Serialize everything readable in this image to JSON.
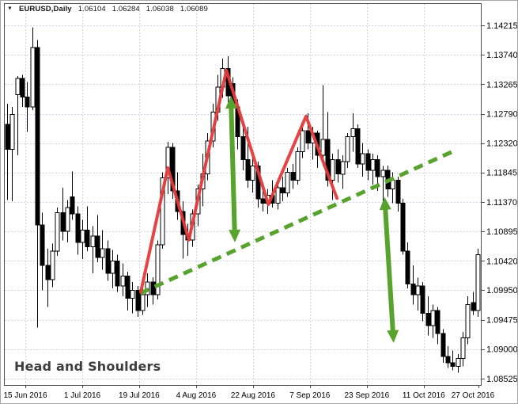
{
  "header": {
    "dropdown_icon": "▼",
    "symbol": "EURUSD,Daily",
    "open": "1.06104",
    "high": "1.06284",
    "low": "1.06038",
    "close": "1.06089"
  },
  "chart_data": {
    "type": "candlestick",
    "symbol": "EURUSD",
    "timeframe": "Daily",
    "annotations": [
      {
        "text": "Head and Shoulders",
        "position": "bottom-left"
      }
    ],
    "grid": {
      "show": true,
      "style": "dashed"
    },
    "colors": {
      "background": "#ffffff",
      "frame": "#4d4d4d",
      "grid": "#d2d2ef",
      "bull_fill": "#ffffff",
      "bear_fill": "#000000",
      "outline": "#000000",
      "pattern_line": "#e43b3b",
      "neckline": "#58a32e",
      "arrow": "#58a32e"
    },
    "y_axis": {
      "position": "right",
      "min": 1.08525,
      "max": 1.14215,
      "labels": [
        "1.14215",
        "1.13740",
        "1.13265",
        "1.12790",
        "1.12320",
        "1.11845",
        "1.11370",
        "1.10895",
        "1.10420",
        "1.09950",
        "1.09475",
        "1.09000",
        "1.08525"
      ]
    },
    "x_axis": {
      "position": "bottom",
      "ticks": [
        {
          "label": "15 Jun 2016",
          "i": 3.63
        },
        {
          "label": "1 Jul 2016",
          "i": 15.0
        },
        {
          "label": "19 Jul 2016",
          "i": 26.37
        },
        {
          "label": "4 Aug 2016",
          "i": 37.74
        },
        {
          "label": "22 Aug 2016",
          "i": 49.11
        },
        {
          "label": "7 Sep 2016",
          "i": 60.48
        },
        {
          "label": "23 Sep 2016",
          "i": 71.85
        },
        {
          "label": "11 Oct 2016",
          "i": 83.22
        },
        {
          "label": "27 Oct 2016",
          "i": 94.2
        }
      ]
    },
    "candles": [
      [
        1.1262,
        1.1295,
        1.114,
        1.1222
      ],
      [
        1.1222,
        1.129,
        1.1138,
        1.1278
      ],
      [
        1.131,
        1.134,
        1.1212,
        1.1336
      ],
      [
        1.1336,
        1.1342,
        1.129,
        1.1306
      ],
      [
        1.1306,
        1.133,
        1.125,
        1.129
      ],
      [
        1.129,
        1.1418,
        1.1285,
        1.1386
      ],
      [
        1.1386,
        1.1398,
        1.0935,
        1.11
      ],
      [
        1.11,
        1.112,
        1.0995,
        1.1035
      ],
      [
        1.1035,
        1.1062,
        1.0968,
        1.1012
      ],
      [
        1.1012,
        1.107,
        1.1,
        1.1058
      ],
      [
        1.1058,
        1.1128,
        1.105,
        1.112
      ],
      [
        1.112,
        1.116,
        1.1075,
        1.109
      ],
      [
        1.109,
        1.114,
        1.1072,
        1.1128
      ],
      [
        1.1145,
        1.1186,
        1.1108,
        1.1118
      ],
      [
        1.1118,
        1.113,
        1.1052,
        1.1072
      ],
      [
        1.1072,
        1.1108,
        1.1045,
        1.1092
      ],
      [
        1.1092,
        1.113,
        1.1058,
        1.1065
      ],
      [
        1.1065,
        1.1098,
        1.1022,
        1.1082
      ],
      [
        1.1082,
        1.1116,
        1.104,
        1.1048
      ],
      [
        1.1048,
        1.1092,
        1.1028,
        1.1062
      ],
      [
        1.1062,
        1.1075,
        1.101,
        1.1022
      ],
      [
        1.1022,
        1.106,
        1.0998,
        1.1042
      ],
      [
        1.1042,
        1.1052,
        1.0992,
        1.1002
      ],
      [
        1.1002,
        1.1038,
        1.0985,
        1.1018
      ],
      [
        1.1018,
        1.1025,
        1.0962,
        1.0982
      ],
      [
        1.0982,
        1.1008,
        1.0958,
        1.0995
      ],
      [
        1.0995,
        1.1002,
        1.0952,
        1.0962
      ],
      [
        1.0962,
        1.0998,
        1.0955,
        1.0988
      ],
      [
        1.0988,
        1.1022,
        1.0968,
        1.1008
      ],
      [
        1.1008,
        1.1016,
        1.0972,
        1.0988
      ],
      [
        1.0988,
        1.1075,
        1.098,
        1.1068
      ],
      [
        1.1068,
        1.1185,
        1.1062,
        1.1176
      ],
      [
        1.1176,
        1.1234,
        1.115,
        1.1225
      ],
      [
        1.1225,
        1.1232,
        1.1142,
        1.1155
      ],
      [
        1.1155,
        1.1185,
        1.1108,
        1.1122
      ],
      [
        1.1122,
        1.1138,
        1.1046,
        1.1085
      ],
      [
        1.1085,
        1.1102,
        1.105,
        1.1076
      ],
      [
        1.1076,
        1.1125,
        1.1065,
        1.1118
      ],
      [
        1.1118,
        1.1165,
        1.1098,
        1.1158
      ],
      [
        1.1158,
        1.1215,
        1.113,
        1.1182
      ],
      [
        1.1182,
        1.1248,
        1.1172,
        1.1235
      ],
      [
        1.1235,
        1.1295,
        1.1225,
        1.1282
      ],
      [
        1.1282,
        1.1342,
        1.1268,
        1.1322
      ],
      [
        1.1322,
        1.1368,
        1.1305,
        1.1352
      ],
      [
        1.1352,
        1.1372,
        1.1298,
        1.1308
      ],
      [
        1.1328,
        1.1338,
        1.1262,
        1.129
      ],
      [
        1.129,
        1.1302,
        1.1222,
        1.1242
      ],
      [
        1.1242,
        1.1268,
        1.1188,
        1.1205
      ],
      [
        1.1205,
        1.1258,
        1.116,
        1.1172
      ],
      [
        1.1172,
        1.121,
        1.1152,
        1.1195
      ],
      [
        1.1195,
        1.1202,
        1.1128,
        1.1142
      ],
      [
        1.1142,
        1.1168,
        1.1122,
        1.1135
      ],
      [
        1.1135,
        1.1158,
        1.1118,
        1.1148
      ],
      [
        1.1148,
        1.1172,
        1.1128,
        1.1135
      ],
      [
        1.1135,
        1.1168,
        1.1125,
        1.116
      ],
      [
        1.116,
        1.1178,
        1.1138,
        1.1152
      ],
      [
        1.1152,
        1.1192,
        1.1145,
        1.1185
      ],
      [
        1.1185,
        1.1198,
        1.1158,
        1.1172
      ],
      [
        1.1172,
        1.1225,
        1.1165,
        1.1218
      ],
      [
        1.1218,
        1.1262,
        1.1208,
        1.1252
      ],
      [
        1.1252,
        1.128,
        1.1222,
        1.1232
      ],
      [
        1.1232,
        1.1258,
        1.1205,
        1.1248
      ],
      [
        1.1248,
        1.1252,
        1.1192,
        1.1212
      ],
      [
        1.1212,
        1.1325,
        1.1195,
        1.1238
      ],
      [
        1.1238,
        1.1282,
        1.1162,
        1.1172
      ],
      [
        1.1172,
        1.1215,
        1.114,
        1.1205
      ],
      [
        1.1205,
        1.1222,
        1.1168,
        1.1182
      ],
      [
        1.1182,
        1.1212,
        1.1158,
        1.1202
      ],
      [
        1.1202,
        1.1248,
        1.1192,
        1.1242
      ],
      [
        1.1242,
        1.128,
        1.1218,
        1.1255
      ],
      [
        1.1255,
        1.1262,
        1.1192,
        1.1198
      ],
      [
        1.1198,
        1.1232,
        1.1178,
        1.1215
      ],
      [
        1.1215,
        1.1222,
        1.1172,
        1.1188
      ],
      [
        1.1188,
        1.1215,
        1.1165,
        1.1205
      ],
      [
        1.1205,
        1.1212,
        1.1155,
        1.1178
      ],
      [
        1.1178,
        1.1195,
        1.1136,
        1.1188
      ],
      [
        1.1188,
        1.1196,
        1.1145,
        1.1158
      ],
      [
        1.1158,
        1.1185,
        1.1135,
        1.1172
      ],
      [
        1.1172,
        1.1178,
        1.1122,
        1.1135
      ],
      [
        1.1135,
        1.1142,
        1.1052,
        1.1058
      ],
      [
        1.1058,
        1.1072,
        1.0998,
        1.1005
      ],
      [
        1.1005,
        1.1035,
        1.0972,
        1.0988
      ],
      [
        1.0988,
        1.1015,
        1.0962,
        1.1002
      ],
      [
        1.1002,
        1.1008,
        1.0945,
        1.0958
      ],
      [
        1.0958,
        1.0985,
        1.0922,
        1.0938
      ],
      [
        1.0938,
        1.0972,
        1.0918,
        1.0962
      ],
      [
        1.0962,
        1.0968,
        1.0908,
        1.0925
      ],
      [
        1.0925,
        1.0932,
        1.0878,
        1.0888
      ],
      [
        1.0888,
        1.0905,
        1.087,
        1.0878
      ],
      [
        1.0878,
        1.0898,
        1.0866,
        1.0872
      ],
      [
        1.0872,
        1.0892,
        1.0862,
        1.0885
      ],
      [
        1.0885,
        1.0928,
        1.0872,
        1.0918
      ],
      [
        1.0918,
        1.0985,
        1.0908,
        1.0972
      ],
      [
        1.0975,
        1.0992,
        1.0955,
        1.0962
      ],
      [
        1.0962,
        1.1062,
        1.0952,
        1.1052
      ]
    ],
    "overlays": {
      "zigzag": {
        "color": "#e43b3b",
        "points_bar_price": [
          [
            26.7,
            1.0992
          ],
          [
            32.1,
            1.1192
          ],
          [
            36.3,
            1.1076
          ],
          [
            43.8,
            1.1349
          ],
          [
            52.2,
            1.1133
          ],
          [
            59.7,
            1.1275
          ],
          [
            65.9,
            1.1143
          ]
        ]
      },
      "neckline": {
        "color": "#58a32e",
        "style": "dashed",
        "from_bar_price": [
          26.6,
          1.099
        ],
        "to_bar_price": [
          89.2,
          1.1219
        ]
      },
      "arrows": [
        {
          "from_bar_price": [
            44.7,
            1.1308
          ],
          "to_bar_price": [
            45.5,
            1.1072
          ]
        },
        {
          "from_bar_price": [
            75.4,
            1.1145
          ],
          "to_bar_price": [
            77.2,
            1.091
          ]
        }
      ]
    }
  }
}
